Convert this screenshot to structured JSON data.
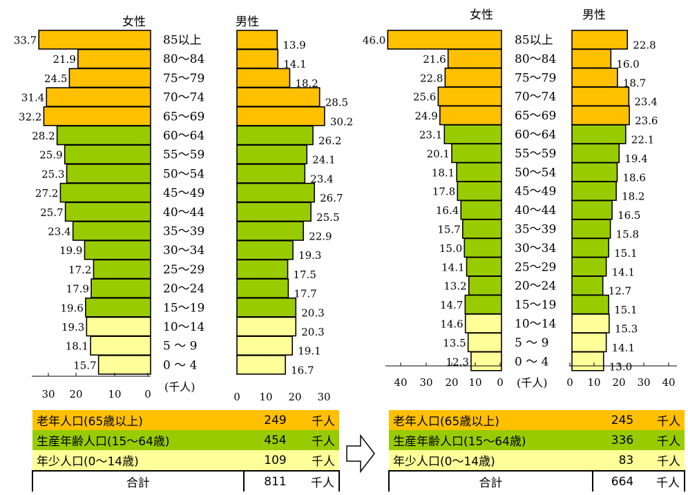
{
  "chart_data": [
    {
      "type": "bar",
      "age_groups": [
        "85以上",
        "80～84",
        "75～79",
        "70～74",
        "65～69",
        "60～64",
        "55～59",
        "50～54",
        "45～49",
        "40～44",
        "35～39",
        "30～34",
        "25～29",
        "20～24",
        "15～19",
        "10～14",
        "5 ～ 9",
        "0 ～ 4"
      ],
      "series": [
        {
          "name": "女性",
          "values": [
            33.7,
            21.9,
            24.5,
            31.4,
            32.2,
            28.2,
            25.9,
            25.3,
            27.2,
            25.7,
            23.4,
            19.9,
            17.2,
            17.9,
            19.6,
            19.3,
            18.1,
            15.7
          ]
        },
        {
          "name": "男性",
          "values": [
            13.9,
            14.1,
            18.2,
            28.5,
            30.2,
            26.2,
            24.1,
            23.4,
            26.7,
            25.5,
            22.9,
            19.3,
            17.5,
            17.7,
            20.3,
            20.3,
            19.1,
            16.7
          ]
        }
      ],
      "female_ticks": [
        "30",
        "20",
        "10",
        "0"
      ],
      "male_ticks": [
        "0",
        "10",
        "20",
        "30"
      ],
      "unit_label": "(千人)",
      "xlim": [
        0,
        40
      ]
    },
    {
      "type": "bar",
      "age_groups": [
        "85以上",
        "80～84",
        "75～79",
        "70～74",
        "65～69",
        "60～64",
        "55～59",
        "50～54",
        "45～49",
        "40～44",
        "35～39",
        "30～34",
        "25～29",
        "20～24",
        "15～19",
        "10～14",
        "5 ～ 9",
        "0 ～ 4"
      ],
      "series": [
        {
          "name": "女性",
          "values": [
            46.0,
            21.6,
            22.8,
            25.6,
            24.9,
            23.1,
            20.1,
            18.1,
            17.8,
            16.4,
            15.7,
            15.0,
            14.1,
            13.2,
            14.7,
            14.6,
            13.5,
            12.3
          ]
        },
        {
          "name": "男性",
          "values": [
            22.8,
            16.0,
            18.7,
            23.4,
            23.6,
            22.1,
            19.4,
            18.6,
            18.2,
            16.5,
            15.8,
            15.1,
            14.1,
            12.7,
            15.1,
            15.3,
            14.1,
            13.0
          ]
        }
      ],
      "female_ticks": [
        "40",
        "30",
        "20",
        "10",
        "0"
      ],
      "male_ticks": [
        "0",
        "10",
        "20",
        "30",
        "40"
      ],
      "unit_label": "(千人)",
      "xlim": [
        0,
        48
      ]
    }
  ],
  "colors": {
    "old": "#ffc000",
    "working": "#99cc00",
    "young": "#ffff99"
  },
  "summary": [
    {
      "rows": [
        {
          "label": "老年人口(65歳以上)",
          "value": "249",
          "unit": "千人"
        },
        {
          "label": "生産年齢人口(15～64歳)",
          "value": "454",
          "unit": "千人"
        },
        {
          "label": "年少人口(0～14歳)",
          "value": "109",
          "unit": "千人"
        }
      ],
      "total": {
        "label": "合計",
        "value": "811",
        "unit": "千人"
      }
    },
    {
      "rows": [
        {
          "label": "老年人口(65歳以上)",
          "value": "245",
          "unit": "千人"
        },
        {
          "label": "生産年齢人口(15～64歳)",
          "value": "336",
          "unit": "千人"
        },
        {
          "label": "年少人口(0～14歳)",
          "value": "83",
          "unit": "千人"
        }
      ],
      "total": {
        "label": "合計",
        "value": "664",
        "unit": "千人"
      }
    }
  ],
  "arrow": "right-arrow-icon"
}
